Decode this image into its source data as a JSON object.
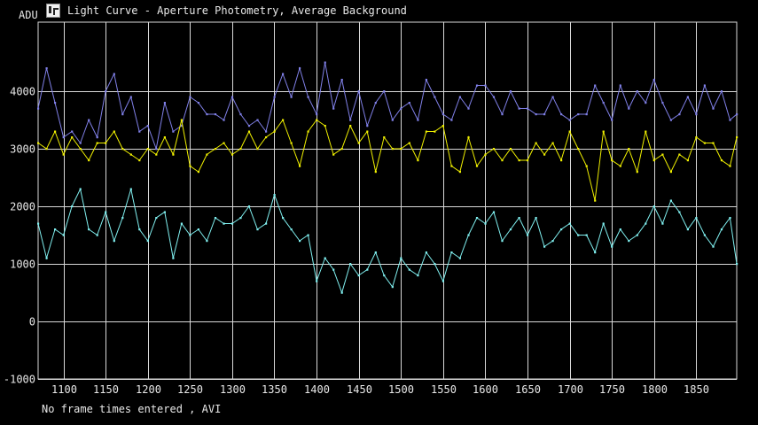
{
  "window": {
    "title": "Light Curve - Aperture Photometry, Average Background",
    "icon": "light-curve-app-icon"
  },
  "footer": {
    "status": "No frame times entered , AVI"
  },
  "colors": {
    "background": "#000000",
    "grid": "#d8d8d8",
    "text": "#e8e8e8"
  },
  "chart_data": {
    "type": "line",
    "title": "Light Curve - Aperture Photometry, Average Background",
    "xlabel": "",
    "ylabel": "ADU",
    "xlim": [
      1070,
      1898
    ],
    "ylim": [
      -1000,
      5200
    ],
    "x_ticks": [
      1100,
      1150,
      1200,
      1250,
      1300,
      1350,
      1400,
      1450,
      1500,
      1550,
      1600,
      1650,
      1700,
      1750,
      1800,
      1850
    ],
    "y_ticks": [
      -1000,
      0,
      1000,
      2000,
      3000,
      4000
    ],
    "grid": true,
    "legend": "none",
    "series": [
      {
        "color": "#8080e8",
        "x": [
          1070,
          1080,
          1090,
          1100,
          1110,
          1120,
          1130,
          1140,
          1150,
          1160,
          1170,
          1180,
          1190,
          1200,
          1210,
          1220,
          1230,
          1240,
          1250,
          1260,
          1270,
          1280,
          1290,
          1300,
          1310,
          1320,
          1330,
          1340,
          1350,
          1360,
          1370,
          1380,
          1390,
          1400,
          1410,
          1420,
          1430,
          1440,
          1450,
          1460,
          1470,
          1480,
          1490,
          1500,
          1510,
          1520,
          1530,
          1540,
          1550,
          1560,
          1570,
          1580,
          1590,
          1600,
          1610,
          1620,
          1630,
          1640,
          1650,
          1660,
          1670,
          1680,
          1690,
          1700,
          1710,
          1720,
          1730,
          1740,
          1750,
          1760,
          1770,
          1780,
          1790,
          1800,
          1810,
          1820,
          1830,
          1840,
          1850,
          1860,
          1870,
          1880,
          1890,
          1898
        ],
        "y": [
          3700,
          4400,
          3800,
          3200,
          3300,
          3100,
          3500,
          3200,
          4000,
          4300,
          3600,
          3900,
          3300,
          3400,
          3000,
          3800,
          3300,
          3400,
          3900,
          3800,
          3600,
          3600,
          3500,
          3900,
          3600,
          3400,
          3500,
          3300,
          3900,
          4300,
          3900,
          4400,
          3900,
          3600,
          4500,
          3700,
          4200,
          3500,
          4000,
          3400,
          3800,
          4000,
          3500,
          3700,
          3800,
          3500,
          4200,
          3900,
          3600,
          3500,
          3900,
          3700,
          4100,
          4100,
          3900,
          3600,
          4000,
          3700,
          3700,
          3600,
          3600,
          3900,
          3600,
          3500,
          3600,
          3600,
          4100,
          3800,
          3500,
          4100,
          3700,
          4000,
          3800,
          4200,
          3800,
          3500,
          3600,
          3900,
          3600,
          4100,
          3700,
          4000,
          3500,
          3600
        ]
      },
      {
        "color": "#f0f000",
        "x": [
          1070,
          1080,
          1090,
          1100,
          1110,
          1120,
          1130,
          1140,
          1150,
          1160,
          1170,
          1180,
          1190,
          1200,
          1210,
          1220,
          1230,
          1240,
          1250,
          1260,
          1270,
          1280,
          1290,
          1300,
          1310,
          1320,
          1330,
          1340,
          1350,
          1360,
          1370,
          1380,
          1390,
          1400,
          1410,
          1420,
          1430,
          1440,
          1450,
          1460,
          1470,
          1480,
          1490,
          1500,
          1510,
          1520,
          1530,
          1540,
          1550,
          1560,
          1570,
          1580,
          1590,
          1600,
          1610,
          1620,
          1630,
          1640,
          1650,
          1660,
          1670,
          1680,
          1690,
          1700,
          1710,
          1720,
          1730,
          1740,
          1750,
          1760,
          1770,
          1780,
          1790,
          1800,
          1810,
          1820,
          1830,
          1840,
          1850,
          1860,
          1870,
          1880,
          1890,
          1898
        ],
        "y": [
          3100,
          3000,
          3300,
          2900,
          3200,
          3000,
          2800,
          3100,
          3100,
          3300,
          3000,
          2900,
          2800,
          3000,
          2900,
          3200,
          2900,
          3500,
          2700,
          2600,
          2900,
          3000,
          3100,
          2900,
          3000,
          3300,
          3000,
          3200,
          3300,
          3500,
          3100,
          2700,
          3300,
          3500,
          3400,
          2900,
          3000,
          3400,
          3100,
          3300,
          2600,
          3200,
          3000,
          3000,
          3100,
          2800,
          3300,
          3300,
          3400,
          2700,
          2600,
          3200,
          2700,
          2900,
          3000,
          2800,
          3000,
          2800,
          2800,
          3100,
          2900,
          3100,
          2800,
          3300,
          3000,
          2700,
          2100,
          3300,
          2800,
          2700,
          3000,
          2600,
          3300,
          2800,
          2900,
          2600,
          2900,
          2800,
          3200,
          3100,
          3100,
          2800,
          2700,
          3200
        ]
      },
      {
        "color": "#80f0f0",
        "x": [
          1070,
          1080,
          1090,
          1100,
          1110,
          1120,
          1130,
          1140,
          1150,
          1160,
          1170,
          1180,
          1190,
          1200,
          1210,
          1220,
          1230,
          1240,
          1250,
          1260,
          1270,
          1280,
          1290,
          1300,
          1310,
          1320,
          1330,
          1340,
          1350,
          1360,
          1370,
          1380,
          1390,
          1400,
          1410,
          1420,
          1430,
          1440,
          1450,
          1460,
          1470,
          1480,
          1490,
          1500,
          1510,
          1520,
          1530,
          1540,
          1550,
          1560,
          1570,
          1580,
          1590,
          1600,
          1610,
          1620,
          1630,
          1640,
          1650,
          1660,
          1670,
          1680,
          1690,
          1700,
          1710,
          1720,
          1730,
          1740,
          1750,
          1760,
          1770,
          1780,
          1790,
          1800,
          1810,
          1820,
          1830,
          1840,
          1850,
          1860,
          1870,
          1880,
          1890,
          1898
        ],
        "y": [
          1700,
          1100,
          1600,
          1500,
          2000,
          2300,
          1600,
          1500,
          1900,
          1400,
          1800,
          2300,
          1600,
          1400,
          1800,
          1900,
          1100,
          1700,
          1500,
          1600,
          1400,
          1800,
          1700,
          1700,
          1800,
          2000,
          1600,
          1700,
          2200,
          1800,
          1600,
          1400,
          1500,
          700,
          1100,
          900,
          500,
          1000,
          800,
          900,
          1200,
          800,
          600,
          1100,
          900,
          800,
          1200,
          1000,
          700,
          1200,
          1100,
          1500,
          1800,
          1700,
          1900,
          1400,
          1600,
          1800,
          1500,
          1800,
          1300,
          1400,
          1600,
          1700,
          1500,
          1500,
          1200,
          1700,
          1300,
          1600,
          1400,
          1500,
          1700,
          2000,
          1700,
          2100,
          1900,
          1600,
          1800,
          1500,
          1300,
          1600,
          1800,
          1000
        ]
      }
    ]
  }
}
